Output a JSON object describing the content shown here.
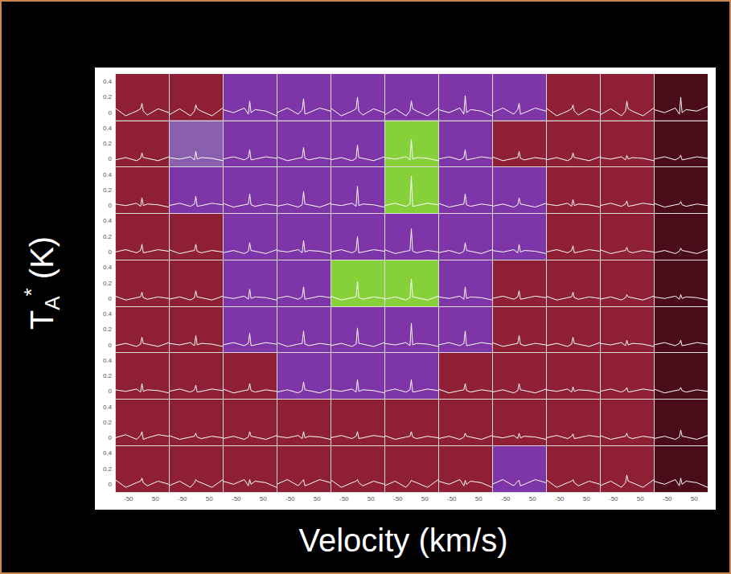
{
  "chart_data": {
    "type": "line",
    "x_label": "Velocity (km/s)",
    "y_label": "TA* (K)",
    "color": "#ffffff",
    "x": [
      -100,
      -60,
      -20,
      -5,
      0,
      5,
      20,
      60,
      100
    ],
    "xlim": [
      -100,
      100
    ],
    "xticks": [
      -50,
      50
    ],
    "ylim": [
      -0.1,
      0.5
    ],
    "yticks": [
      0,
      0.2,
      0.4
    ],
    "colors": [
      [
        "#8e1f35",
        "#8e1f35",
        "#7d35a8",
        "#7d35a8",
        "#7d35a8",
        "#7d35a8",
        "#7d35a8",
        "#7d35a8",
        "#8e1f35",
        "#8e1f35",
        "#4a0c18"
      ],
      [
        "#8e1f35",
        "#8a5fae",
        "#7d35a8",
        "#7d35a8",
        "#7d35a8",
        "#86d13a",
        "#7d35a8",
        "#8e1f35",
        "#8e1f35",
        "#8e1f35",
        "#4a0c18"
      ],
      [
        "#8e1f35",
        "#7d35a8",
        "#7d35a8",
        "#7d35a8",
        "#7d35a8",
        "#86d13a",
        "#7d35a8",
        "#7d35a8",
        "#8e1f35",
        "#8e1f35",
        "#4a0c18"
      ],
      [
        "#8e1f35",
        "#8e1f35",
        "#7d35a8",
        "#7d35a8",
        "#7d35a8",
        "#7d35a8",
        "#7d35a8",
        "#7d35a8",
        "#8e1f35",
        "#8e1f35",
        "#4a0c18"
      ],
      [
        "#8e1f35",
        "#8e1f35",
        "#7d35a8",
        "#7d35a8",
        "#86d13a",
        "#86d13a",
        "#7d35a8",
        "#8e1f35",
        "#8e1f35",
        "#8e1f35",
        "#4a0c18"
      ],
      [
        "#8e1f35",
        "#8e1f35",
        "#7d35a8",
        "#7d35a8",
        "#7d35a8",
        "#7d35a8",
        "#7d35a8",
        "#8e1f35",
        "#8e1f35",
        "#8e1f35",
        "#4a0c18"
      ],
      [
        "#8e1f35",
        "#8e1f35",
        "#8e1f35",
        "#7d35a8",
        "#7d35a8",
        "#7d35a8",
        "#8e1f35",
        "#8e1f35",
        "#8e1f35",
        "#8e1f35",
        "#4a0c18"
      ],
      [
        "#8e1f35",
        "#8e1f35",
        "#8e1f35",
        "#8e1f35",
        "#8e1f35",
        "#8e1f35",
        "#8e1f35",
        "#8e1f35",
        "#8e1f35",
        "#8e1f35",
        "#4a0c18"
      ],
      [
        "#8e1f35",
        "#8e1f35",
        "#8e1f35",
        "#8e1f35",
        "#8e1f35",
        "#8e1f35",
        "#8e1f35",
        "#7d35a8",
        "#8e1f35",
        "#8e1f35",
        "#4a0c18"
      ]
    ],
    "rows": [
      [
        [
          0.06,
          -0.04,
          0.02,
          0.05,
          0.12,
          0.02,
          -0.03,
          0.05,
          0.0
        ],
        [
          -0.03,
          0.05,
          -0.04,
          0.02,
          0.1,
          0.05,
          0.02,
          -0.04,
          0.06
        ],
        [
          0.04,
          0.0,
          0.06,
          -0.02,
          0.15,
          0.0,
          0.04,
          0.02,
          -0.04
        ],
        [
          0.0,
          0.06,
          -0.02,
          0.04,
          0.18,
          -0.02,
          0.0,
          0.06,
          0.02
        ],
        [
          0.06,
          -0.04,
          0.02,
          0.05,
          0.2,
          0.02,
          -0.03,
          0.05,
          0.0
        ],
        [
          -0.03,
          0.05,
          -0.04,
          0.02,
          0.15,
          0.05,
          0.02,
          -0.04,
          0.06
        ],
        [
          0.04,
          0.0,
          0.06,
          -0.02,
          0.22,
          0.0,
          0.04,
          0.02,
          -0.04
        ],
        [
          0.0,
          0.06,
          -0.02,
          0.04,
          0.12,
          -0.02,
          0.0,
          0.06,
          0.02
        ],
        [
          0.06,
          -0.04,
          0.02,
          0.05,
          0.1,
          0.02,
          -0.03,
          0.05,
          0.0
        ],
        [
          -0.03,
          0.05,
          -0.04,
          0.02,
          0.15,
          0.05,
          0.02,
          -0.04,
          0.06
        ],
        [
          0.04,
          0.0,
          0.06,
          -0.02,
          0.2,
          0.0,
          0.04,
          0.02,
          0.08
        ]
      ],
      [
        [
          -0.01,
          0.02,
          -0.02,
          0.01,
          0.08,
          0.02,
          0.01,
          -0.02,
          0.03
        ],
        [
          0.02,
          0.0,
          0.03,
          -0.01,
          0.1,
          0.0,
          0.02,
          0.01,
          -0.02
        ],
        [
          0.0,
          0.03,
          -0.01,
          0.02,
          0.12,
          -0.01,
          0.0,
          0.03,
          0.01
        ],
        [
          0.03,
          -0.02,
          0.01,
          0.02,
          0.15,
          0.01,
          -0.01,
          0.02,
          0.0
        ],
        [
          -0.01,
          0.02,
          -0.02,
          0.01,
          0.18,
          0.02,
          0.01,
          -0.02,
          0.03
        ],
        [
          0.02,
          0.0,
          0.03,
          -0.01,
          0.25,
          0.0,
          0.02,
          0.01,
          -0.02
        ],
        [
          0.0,
          0.03,
          -0.01,
          0.02,
          0.12,
          -0.01,
          0.0,
          0.03,
          0.01
        ],
        [
          0.03,
          -0.02,
          0.01,
          0.02,
          0.1,
          0.01,
          -0.01,
          0.02,
          0.0
        ],
        [
          -0.01,
          0.02,
          -0.02,
          0.01,
          0.08,
          0.02,
          0.01,
          -0.02,
          0.03
        ],
        [
          0.02,
          0.0,
          0.03,
          -0.01,
          0.05,
          0.0,
          0.02,
          0.01,
          -0.02
        ],
        [
          0.0,
          0.03,
          -0.01,
          0.02,
          0.05,
          -0.01,
          0.0,
          0.03,
          0.01
        ]
      ],
      [
        [
          0.02,
          0.0,
          0.03,
          -0.01,
          0.1,
          0.0,
          0.02,
          0.01,
          -0.02
        ],
        [
          0.0,
          0.03,
          -0.01,
          0.02,
          0.12,
          -0.01,
          0.0,
          0.03,
          0.01
        ],
        [
          0.03,
          -0.02,
          0.01,
          0.02,
          0.15,
          0.01,
          -0.01,
          0.02,
          0.0
        ],
        [
          -0.01,
          0.02,
          -0.02,
          0.01,
          0.18,
          0.02,
          0.01,
          -0.02,
          0.03
        ],
        [
          0.02,
          0.0,
          0.03,
          -0.01,
          0.25,
          0.0,
          0.02,
          0.01,
          -0.02
        ],
        [
          0.0,
          0.03,
          -0.01,
          0.02,
          0.38,
          -0.01,
          0.0,
          0.03,
          0.01
        ],
        [
          0.03,
          -0.02,
          0.01,
          0.02,
          0.15,
          0.01,
          -0.01,
          0.02,
          0.0
        ],
        [
          -0.01,
          0.02,
          -0.02,
          0.01,
          0.1,
          0.02,
          0.01,
          -0.02,
          0.03
        ],
        [
          0.02,
          0.0,
          0.03,
          -0.01,
          0.08,
          0.0,
          0.02,
          0.01,
          -0.02
        ],
        [
          0.0,
          0.03,
          -0.01,
          0.02,
          0.06,
          -0.01,
          0.0,
          0.03,
          0.01
        ],
        [
          0.03,
          -0.02,
          0.01,
          0.02,
          0.05,
          0.01,
          -0.01,
          0.02,
          0.0
        ]
      ],
      [
        [
          0.0,
          0.03,
          -0.01,
          0.02,
          0.1,
          -0.01,
          0.0,
          0.03,
          0.01
        ],
        [
          0.03,
          -0.02,
          0.01,
          0.02,
          0.1,
          0.01,
          -0.01,
          0.02,
          0.0
        ],
        [
          -0.01,
          0.02,
          -0.02,
          0.01,
          0.12,
          0.02,
          0.01,
          -0.02,
          0.03
        ],
        [
          0.02,
          0.0,
          0.03,
          -0.01,
          0.15,
          0.0,
          0.02,
          0.01,
          -0.02
        ],
        [
          0.0,
          0.03,
          -0.01,
          0.02,
          0.2,
          -0.01,
          0.0,
          0.03,
          0.01
        ],
        [
          0.03,
          -0.02,
          0.01,
          0.02,
          0.3,
          0.01,
          -0.01,
          0.02,
          0.0
        ],
        [
          -0.01,
          0.02,
          -0.02,
          0.01,
          0.12,
          0.02,
          0.01,
          -0.02,
          0.03
        ],
        [
          0.02,
          0.0,
          0.03,
          -0.01,
          0.1,
          0.0,
          0.02,
          0.01,
          -0.02
        ],
        [
          0.0,
          0.03,
          -0.01,
          0.02,
          0.08,
          -0.01,
          0.0,
          0.03,
          0.01
        ],
        [
          0.03,
          -0.02,
          0.01,
          0.02,
          0.06,
          0.01,
          -0.01,
          0.02,
          0.0
        ],
        [
          -0.01,
          0.02,
          -0.02,
          0.01,
          0.05,
          0.02,
          0.01,
          -0.02,
          0.03
        ]
      ],
      [
        [
          0.03,
          -0.02,
          0.01,
          0.02,
          0.08,
          0.01,
          -0.01,
          0.02,
          0.0
        ],
        [
          -0.01,
          0.02,
          -0.02,
          0.01,
          0.1,
          0.02,
          0.01,
          -0.02,
          0.03
        ],
        [
          0.02,
          0.0,
          0.03,
          -0.01,
          0.12,
          0.0,
          0.02,
          0.01,
          -0.02
        ],
        [
          0.0,
          0.03,
          -0.01,
          0.02,
          0.15,
          -0.01,
          0.0,
          0.03,
          0.01
        ],
        [
          0.03,
          -0.02,
          0.01,
          0.02,
          0.22,
          0.01,
          -0.01,
          0.02,
          0.0
        ],
        [
          -0.01,
          0.02,
          -0.02,
          0.01,
          0.25,
          0.02,
          0.01,
          -0.02,
          0.03
        ],
        [
          0.02,
          0.0,
          0.03,
          -0.01,
          0.15,
          0.0,
          0.02,
          0.01,
          -0.02
        ],
        [
          0.0,
          0.03,
          -0.01,
          0.02,
          0.1,
          -0.01,
          0.0,
          0.03,
          0.01
        ],
        [
          0.03,
          -0.02,
          0.01,
          0.02,
          0.08,
          0.01,
          -0.01,
          0.02,
          0.0
        ],
        [
          -0.01,
          0.02,
          -0.02,
          0.01,
          0.05,
          0.02,
          0.01,
          -0.02,
          0.03
        ],
        [
          0.02,
          0.0,
          0.03,
          -0.01,
          0.05,
          0.0,
          0.02,
          0.01,
          -0.02
        ]
      ],
      [
        [
          -0.01,
          0.02,
          -0.02,
          0.01,
          0.1,
          0.02,
          0.01,
          -0.02,
          0.03
        ],
        [
          0.02,
          0.0,
          0.03,
          -0.01,
          0.12,
          0.0,
          0.02,
          0.01,
          -0.02
        ],
        [
          0.0,
          0.03,
          -0.01,
          0.02,
          0.15,
          -0.01,
          0.0,
          0.03,
          0.01
        ],
        [
          0.03,
          -0.02,
          0.01,
          0.02,
          0.18,
          0.01,
          -0.01,
          0.02,
          0.0
        ],
        [
          -0.01,
          0.02,
          -0.02,
          0.01,
          0.22,
          0.02,
          0.01,
          -0.02,
          0.03
        ],
        [
          0.02,
          0.0,
          0.03,
          -0.01,
          0.28,
          0.0,
          0.02,
          0.01,
          -0.02
        ],
        [
          0.0,
          0.03,
          -0.01,
          0.02,
          0.18,
          -0.01,
          0.0,
          0.03,
          0.01
        ],
        [
          0.03,
          -0.02,
          0.01,
          0.02,
          0.12,
          0.01,
          -0.01,
          0.02,
          0.0
        ],
        [
          -0.01,
          0.02,
          -0.02,
          0.01,
          0.1,
          0.02,
          0.01,
          -0.02,
          0.03
        ],
        [
          0.02,
          0.0,
          0.03,
          -0.01,
          0.06,
          0.0,
          0.02,
          0.01,
          -0.02
        ],
        [
          0.0,
          0.03,
          -0.01,
          0.02,
          0.06,
          -0.01,
          0.0,
          0.03,
          0.01
        ]
      ],
      [
        [
          0.02,
          0.0,
          0.03,
          -0.01,
          0.1,
          0.0,
          0.02,
          0.01,
          -0.02
        ],
        [
          0.0,
          0.03,
          -0.01,
          0.02,
          0.08,
          -0.01,
          0.0,
          0.03,
          0.01
        ],
        [
          0.03,
          -0.02,
          0.01,
          0.02,
          0.1,
          0.01,
          -0.01,
          0.02,
          0.0
        ],
        [
          -0.01,
          0.02,
          -0.02,
          0.01,
          0.12,
          0.02,
          0.01,
          -0.02,
          0.03
        ],
        [
          0.02,
          0.0,
          0.03,
          -0.01,
          0.15,
          0.0,
          0.02,
          0.01,
          -0.02
        ],
        [
          0.0,
          0.03,
          -0.01,
          0.02,
          0.15,
          -0.01,
          0.0,
          0.03,
          0.01
        ],
        [
          0.03,
          -0.02,
          0.01,
          0.02,
          0.1,
          0.01,
          -0.01,
          0.02,
          0.0
        ],
        [
          -0.01,
          0.02,
          -0.02,
          0.01,
          0.1,
          0.02,
          0.01,
          -0.02,
          0.03
        ],
        [
          0.02,
          0.0,
          0.03,
          -0.01,
          0.06,
          0.0,
          0.02,
          0.01,
          -0.02
        ],
        [
          0.0,
          0.03,
          -0.01,
          0.02,
          0.05,
          -0.01,
          0.0,
          0.03,
          0.01
        ],
        [
          0.03,
          -0.02,
          0.01,
          0.02,
          0.05,
          0.01,
          -0.01,
          0.02,
          0.0
        ]
      ],
      [
        [
          0.0,
          0.04,
          -0.02,
          0.03,
          0.08,
          -0.02,
          0.0,
          0.04,
          0.02
        ],
        [
          0.03,
          -0.02,
          0.01,
          0.02,
          0.06,
          0.01,
          -0.01,
          0.02,
          0.0
        ],
        [
          -0.01,
          0.02,
          -0.02,
          0.01,
          0.08,
          0.02,
          0.01,
          -0.02,
          0.03
        ],
        [
          0.02,
          0.0,
          0.03,
          -0.01,
          0.08,
          0.0,
          0.02,
          0.01,
          -0.02
        ],
        [
          0.0,
          0.03,
          -0.01,
          0.02,
          0.08,
          -0.01,
          0.0,
          0.03,
          0.01
        ],
        [
          0.03,
          -0.02,
          0.01,
          0.02,
          0.08,
          0.01,
          -0.01,
          0.02,
          0.0
        ],
        [
          -0.01,
          0.02,
          -0.02,
          0.01,
          0.06,
          0.02,
          0.01,
          -0.02,
          0.03
        ],
        [
          0.02,
          0.0,
          0.03,
          -0.01,
          0.06,
          0.0,
          0.02,
          0.01,
          -0.02
        ],
        [
          0.0,
          0.03,
          -0.01,
          0.02,
          0.05,
          -0.01,
          0.0,
          0.03,
          0.01
        ],
        [
          0.03,
          -0.02,
          0.01,
          0.02,
          0.06,
          0.01,
          -0.01,
          0.02,
          0.0
        ],
        [
          -0.01,
          0.02,
          -0.02,
          0.01,
          0.1,
          0.02,
          0.01,
          -0.02,
          0.03
        ]
      ],
      [
        [
          0.06,
          -0.04,
          0.02,
          0.04,
          0.08,
          0.02,
          -0.02,
          0.04,
          0.0
        ],
        [
          -0.02,
          0.04,
          -0.04,
          0.02,
          0.06,
          0.04,
          0.02,
          -0.04,
          0.06
        ],
        [
          0.04,
          0.0,
          0.06,
          -0.02,
          0.06,
          0.0,
          0.04,
          0.02,
          -0.04
        ],
        [
          0.0,
          0.06,
          -0.02,
          0.04,
          0.06,
          -0.02,
          0.0,
          0.06,
          0.02
        ],
        [
          0.06,
          -0.04,
          0.02,
          0.04,
          0.06,
          0.02,
          -0.02,
          0.04,
          0.0
        ],
        [
          -0.02,
          0.04,
          -0.04,
          0.02,
          0.05,
          0.04,
          0.02,
          -0.04,
          0.06
        ],
        [
          0.04,
          0.0,
          0.06,
          -0.02,
          0.05,
          0.0,
          0.04,
          0.02,
          -0.04
        ],
        [
          0.0,
          0.06,
          -0.02,
          0.04,
          0.05,
          -0.02,
          0.0,
          0.06,
          0.02
        ],
        [
          0.06,
          -0.04,
          0.02,
          0.04,
          0.06,
          0.02,
          -0.02,
          0.04,
          0.0
        ],
        [
          -0.02,
          0.04,
          -0.04,
          0.02,
          0.12,
          0.04,
          0.02,
          -0.04,
          0.06
        ],
        [
          0.04,
          0.0,
          0.06,
          -0.02,
          0.08,
          0.0,
          0.04,
          0.02,
          -0.04
        ]
      ]
    ]
  }
}
